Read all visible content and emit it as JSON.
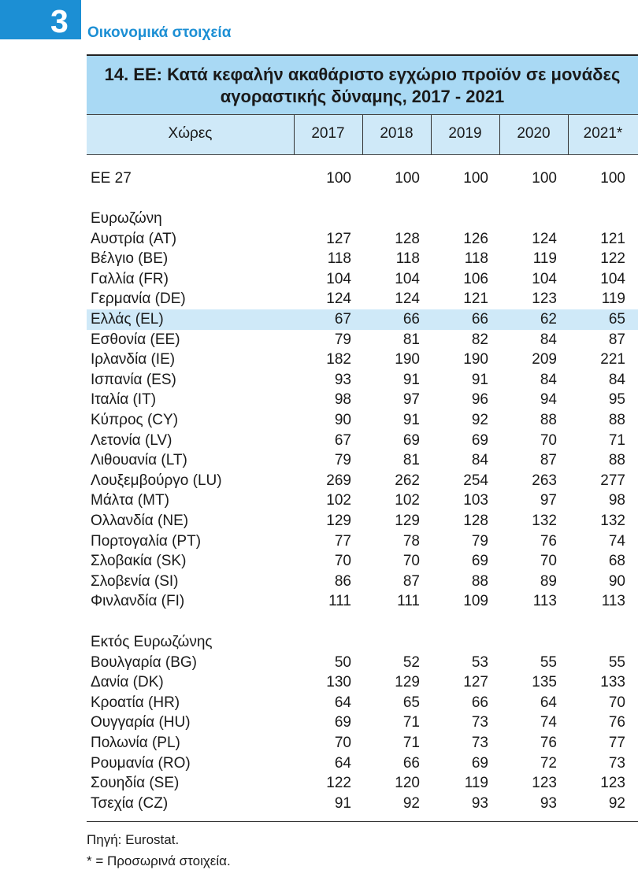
{
  "chapter": {
    "number": "3",
    "title": "Οικονομικά στοιχεία"
  },
  "table": {
    "title_line1": "14. ΕΕ: Κατά κεφαλήν ακαθάριστο εγχώριο προϊόν σε μονάδες",
    "title_line2": "αγοραστικής δύναμης, 2017 - 2021",
    "columns": [
      "Χώρες",
      "2017",
      "2018",
      "2019",
      "2020",
      "2021*"
    ],
    "rows": [
      {
        "label": "ΕΕ 27",
        "values": [
          "100",
          "100",
          "100",
          "100",
          "100"
        ]
      },
      {
        "label": "Ευρωζώνη",
        "values": []
      },
      {
        "label": "Αυστρία (AT)",
        "values": [
          "127",
          "128",
          "126",
          "124",
          "121"
        ]
      },
      {
        "label": "Βέλγιο (BE)",
        "values": [
          "118",
          "118",
          "118",
          "119",
          "122"
        ]
      },
      {
        "label": "Γαλλία (FR)",
        "values": [
          "104",
          "104",
          "106",
          "104",
          "104"
        ]
      },
      {
        "label": "Γερμανία (DE)",
        "values": [
          "124",
          "124",
          "121",
          "123",
          "119"
        ]
      },
      {
        "label": "Ελλάς (EL)",
        "values": [
          "67",
          "66",
          "66",
          "62",
          "65"
        ],
        "highlight": true
      },
      {
        "label": "Εσθονία (EE)",
        "values": [
          "79",
          "81",
          "82",
          "84",
          "87"
        ]
      },
      {
        "label": "Ιρλανδία (IE)",
        "values": [
          "182",
          "190",
          "190",
          "209",
          "221"
        ]
      },
      {
        "label": "Ισπανία (ES)",
        "values": [
          "93",
          "91",
          "91",
          "84",
          "84"
        ]
      },
      {
        "label": "Ιταλία (IT)",
        "values": [
          "98",
          "97",
          "96",
          "94",
          "95"
        ]
      },
      {
        "label": "Κύπρος (CY)",
        "values": [
          "90",
          "91",
          "92",
          "88",
          "88"
        ]
      },
      {
        "label": "Λετονία (LV)",
        "values": [
          "67",
          "69",
          "69",
          "70",
          "71"
        ]
      },
      {
        "label": "Λιθουανία (LT)",
        "values": [
          "79",
          "81",
          "84",
          "87",
          "88"
        ]
      },
      {
        "label": "Λουξεμβούργο (LU)",
        "values": [
          "269",
          "262",
          "254",
          "263",
          "277"
        ]
      },
      {
        "label": "Μάλτα (MT)",
        "values": [
          "102",
          "102",
          "103",
          "97",
          "98"
        ]
      },
      {
        "label": "Ολλανδία (NE)",
        "values": [
          "129",
          "129",
          "128",
          "132",
          "132"
        ]
      },
      {
        "label": "Πορτογαλία (PT)",
        "values": [
          "77",
          "78",
          "79",
          "76",
          "74"
        ]
      },
      {
        "label": "Σλοβακία (SK)",
        "values": [
          "70",
          "70",
          "69",
          "70",
          "68"
        ]
      },
      {
        "label": "Σλοβενία (SI)",
        "values": [
          "86",
          "87",
          "88",
          "89",
          "90"
        ]
      },
      {
        "label": "Φινλανδία (FI)",
        "values": [
          "111",
          "111",
          "109",
          "113",
          "113"
        ]
      },
      {
        "label": "Εκτός Ευρωζώνης",
        "values": []
      },
      {
        "label": "Βουλγαρία (BG)",
        "values": [
          "50",
          "52",
          "53",
          "55",
          "55"
        ]
      },
      {
        "label": "Δανία (DK)",
        "values": [
          "130",
          "129",
          "127",
          "135",
          "133"
        ]
      },
      {
        "label": "Κροατία (HR)",
        "values": [
          "64",
          "65",
          "66",
          "64",
          "70"
        ]
      },
      {
        "label": "Ουγγαρία (HU)",
        "values": [
          "69",
          "71",
          "73",
          "74",
          "76"
        ]
      },
      {
        "label": "Πολωνία (PL)",
        "values": [
          "70",
          "71",
          "73",
          "76",
          "77"
        ]
      },
      {
        "label": "Ρουμανία (RO)",
        "values": [
          "64",
          "66",
          "69",
          "72",
          "73"
        ]
      },
      {
        "label": "Σουηδία (SE)",
        "values": [
          "122",
          "120",
          "119",
          "123",
          "123"
        ]
      },
      {
        "label": "Τσεχία (CZ)",
        "values": [
          "91",
          "92",
          "93",
          "93",
          "92"
        ]
      }
    ]
  },
  "notes": {
    "source": "Πηγή: Eurostat.",
    "provisional": "* =  Προσωρινά στοιχεία."
  },
  "colors": {
    "accent": "#1c8fd4",
    "title_bg": "#a9d9f4",
    "header_bg": "#cfe9f8"
  }
}
